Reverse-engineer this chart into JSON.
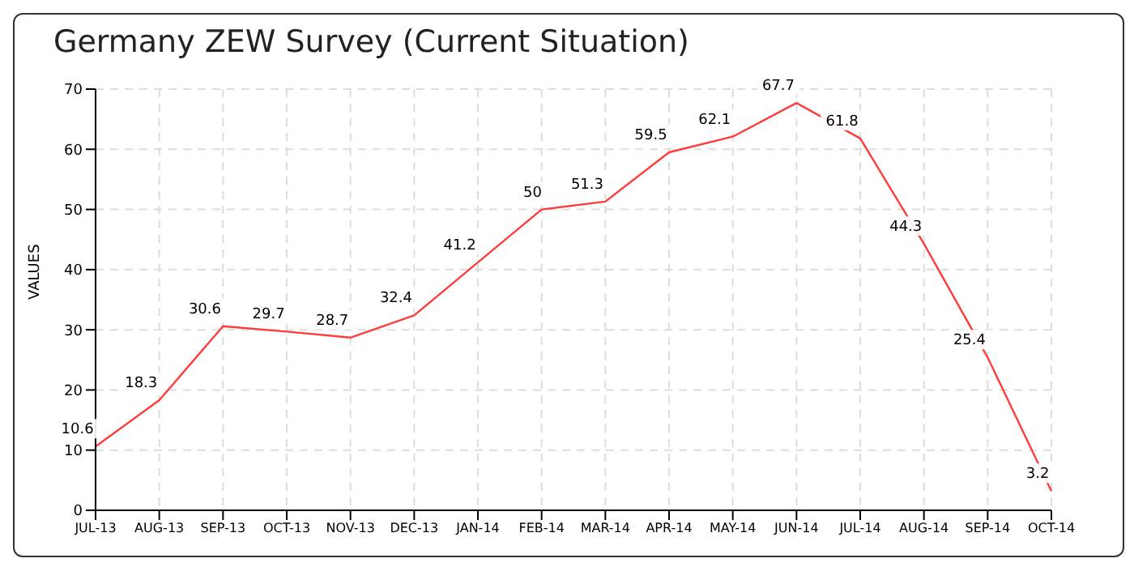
{
  "chart_data": {
    "type": "line",
    "title": "Germany ZEW Survey (Current Situation)",
    "ylabel": "VALUES",
    "categories": [
      "JUL-13",
      "AUG-13",
      "SEP-13",
      "OCT-13",
      "NOV-13",
      "DEC-13",
      "JAN-14",
      "FEB-14",
      "MAR-14",
      "APR-14",
      "MAY-14",
      "JUN-14",
      "JUL-14",
      "AUG-14",
      "SEP-14",
      "OCT-14"
    ],
    "series": [
      {
        "color": "#ff3b3b",
        "values": [
          10.6,
          18.3,
          30.6,
          29.7,
          28.7,
          32.4,
          41.2,
          50,
          51.3,
          59.5,
          62.1,
          67.7,
          61.8,
          44.3,
          25.4,
          3.2
        ]
      }
    ],
    "ylim": [
      0,
      70
    ],
    "yticks": [
      0,
      10,
      20,
      30,
      40,
      50,
      60,
      70
    ],
    "grid": true,
    "marker": "none",
    "line_style": "solid",
    "data_labels": true
  }
}
